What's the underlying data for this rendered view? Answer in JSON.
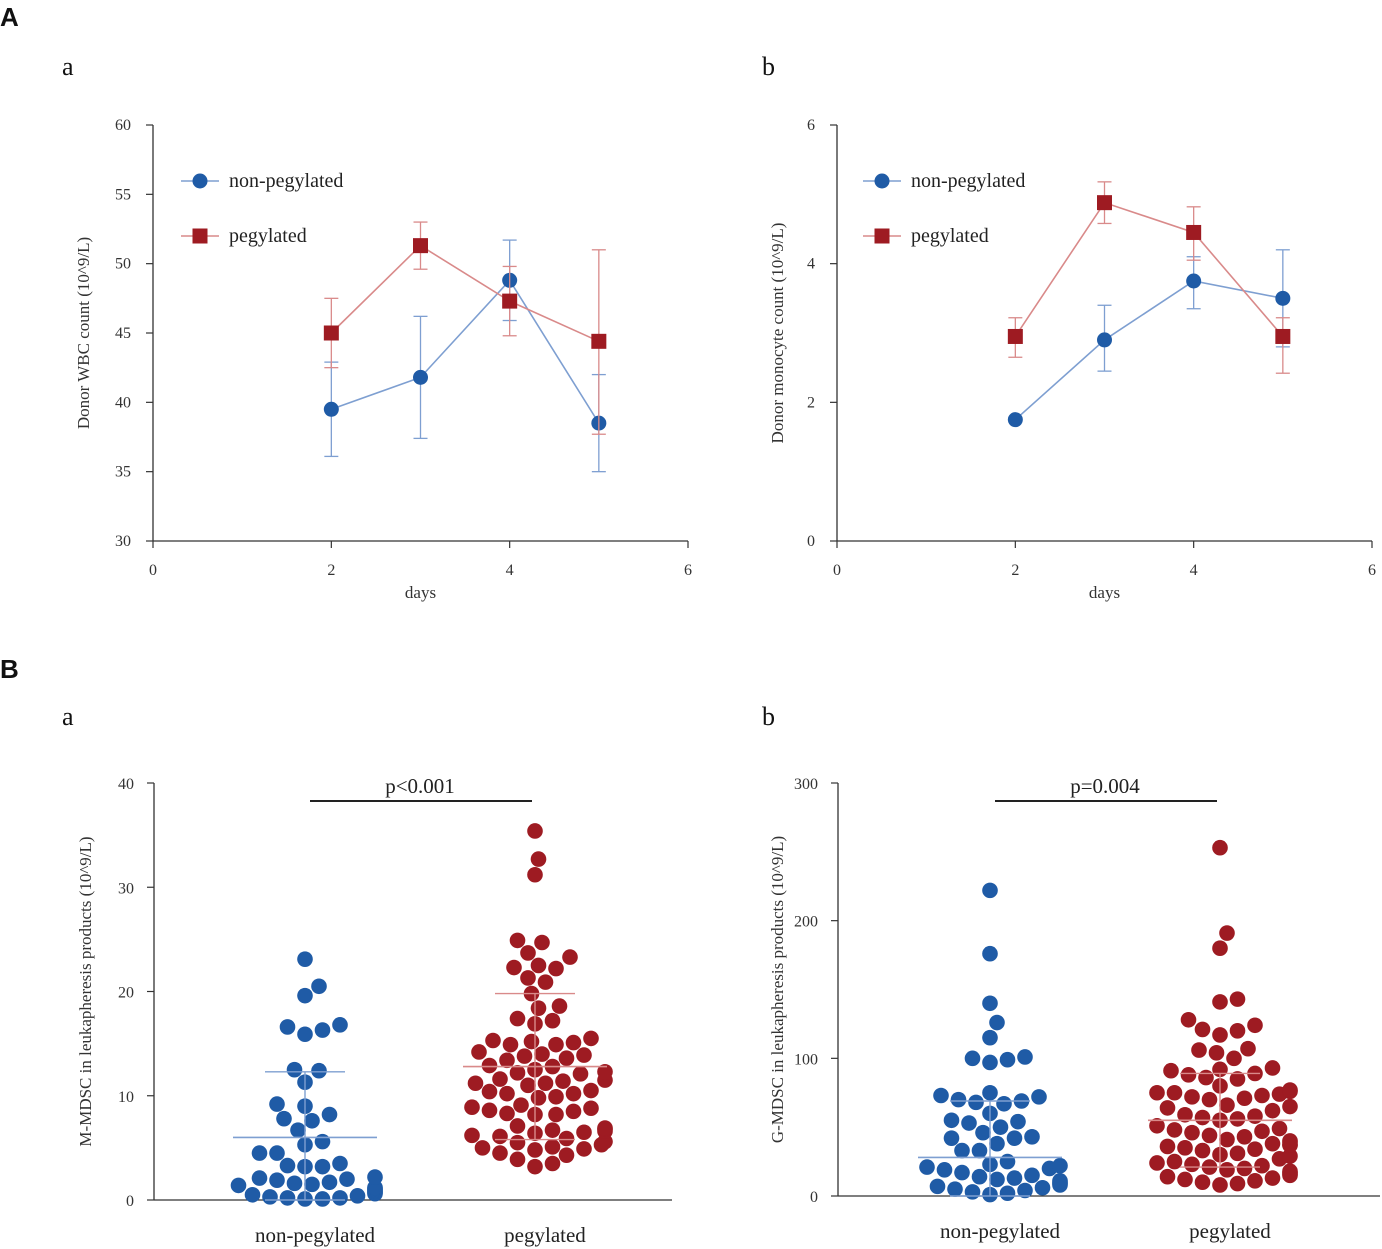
{
  "figure": {
    "panel_labels": [
      "A",
      "B"
    ],
    "subpanel_labels": [
      "a",
      "b",
      "a",
      "b"
    ]
  },
  "colors": {
    "blue": "#1f5ba6",
    "red": "#9e1b22",
    "blue_line": "#7e9fd1",
    "red_line": "#d98a8a",
    "axis": "#333333"
  },
  "chart_data": [
    {
      "id": "Aa",
      "type": "line",
      "title": "",
      "xlabel": "days",
      "ylabel": "Donor WBC count (10^9/L)",
      "xlim": [
        0,
        6
      ],
      "ylim": [
        30,
        60
      ],
      "xticks": [
        0,
        2,
        4,
        6
      ],
      "yticks": [
        30,
        35,
        40,
        45,
        50,
        55,
        60
      ],
      "series": [
        {
          "name": "non-pegylated",
          "x": [
            2,
            3,
            4,
            5
          ],
          "y": [
            39.5,
            41.8,
            48.8,
            38.5
          ],
          "err_low": [
            36.1,
            37.4,
            45.9,
            35.0
          ],
          "err_high": [
            42.9,
            46.2,
            51.7,
            42.0
          ],
          "marker": "circle"
        },
        {
          "name": "pegylated",
          "x": [
            2,
            3,
            4,
            5
          ],
          "y": [
            45.0,
            51.3,
            47.3,
            44.4
          ],
          "err_low": [
            42.5,
            49.6,
            44.8,
            37.7
          ],
          "err_high": [
            47.5,
            53.0,
            49.8,
            51.0
          ],
          "marker": "square"
        }
      ],
      "legend": "top-left"
    },
    {
      "id": "Ab",
      "type": "line",
      "title": "",
      "xlabel": "days",
      "ylabel": "Donor monocyte count (10^9/L)",
      "xlim": [
        0,
        6
      ],
      "ylim": [
        0,
        6
      ],
      "xticks": [
        0,
        2,
        4,
        6
      ],
      "yticks": [
        0,
        2,
        4,
        6
      ],
      "series": [
        {
          "name": "non-pegylated",
          "x": [
            2,
            3,
            4,
            5
          ],
          "y": [
            1.75,
            2.9,
            3.75,
            3.5
          ],
          "err_low": [
            1.75,
            2.45,
            3.35,
            2.8
          ],
          "err_high": [
            1.75,
            3.4,
            4.1,
            4.2
          ],
          "marker": "circle"
        },
        {
          "name": "pegylated",
          "x": [
            2,
            3,
            4,
            5
          ],
          "y": [
            2.95,
            4.88,
            4.45,
            2.95
          ],
          "err_low": [
            2.65,
            4.58,
            4.05,
            2.42
          ],
          "err_high": [
            3.22,
            5.18,
            4.82,
            3.22
          ],
          "marker": "square"
        }
      ],
      "legend": "top-left"
    },
    {
      "id": "Ba",
      "type": "scatter",
      "title": "",
      "xlabel": "",
      "ylabel": "M-MDSC in leukapheresis products (10^9/L)",
      "ylim": [
        0,
        40
      ],
      "yticks": [
        0,
        10,
        20,
        30,
        40
      ],
      "categories": [
        "non-pegylated",
        "pegylated"
      ],
      "annotation": "p<0.001",
      "groups": [
        {
          "name": "non-pegylated",
          "mean": 6.0,
          "sd_low": 0.0,
          "sd_high": 12.3,
          "values": [
            23.1,
            20.5,
            19.6,
            16.8,
            16.6,
            16.3,
            15.9,
            12.5,
            12.4,
            11.3,
            9.2,
            9.0,
            8.2,
            7.8,
            7.6,
            6.7,
            5.6,
            5.3,
            4.5,
            4.5,
            3.5,
            3.3,
            3.2,
            3.2,
            2.2,
            2.1,
            2.0,
            1.9,
            1.7,
            1.6,
            1.5,
            1.4,
            1.2,
            1.1,
            1.0,
            0.9,
            0.8,
            0.7,
            0.6,
            0.5,
            0.4,
            0.3,
            0.2,
            0.2,
            0.1,
            0.1
          ]
        },
        {
          "name": "pegylated",
          "mean": 12.8,
          "sd_low": 5.8,
          "sd_high": 19.8,
          "values": [
            35.4,
            32.7,
            31.2,
            24.9,
            24.7,
            23.7,
            23.3,
            22.5,
            22.3,
            22.2,
            21.3,
            20.9,
            19.8,
            18.6,
            18.4,
            17.4,
            17.2,
            16.9,
            15.5,
            15.3,
            15.2,
            15.1,
            14.9,
            14.9,
            14.2,
            14.0,
            13.9,
            13.8,
            13.6,
            13.4,
            12.9,
            12.8,
            12.5,
            12.3,
            12.2,
            12.1,
            11.6,
            11.5,
            11.4,
            11.2,
            11.2,
            11.0,
            10.5,
            10.4,
            10.2,
            10.2,
            9.9,
            9.8,
            9.1,
            8.9,
            8.8,
            8.6,
            8.5,
            8.3,
            8.2,
            8.2,
            7.1,
            6.9,
            6.8,
            6.7,
            6.6,
            6.5,
            6.4,
            6.2,
            6.1,
            5.9,
            5.6,
            5.5,
            5.3,
            5.1,
            5.0,
            4.9,
            4.8,
            4.5,
            4.3,
            3.9,
            3.5,
            3.2
          ]
        }
      ]
    },
    {
      "id": "Bb",
      "type": "scatter",
      "title": "",
      "xlabel": "",
      "ylabel": "G-MDSC in leukapheresis products (10^9/L)",
      "ylim": [
        0,
        300
      ],
      "yticks": [
        0,
        100,
        200,
        300
      ],
      "categories": [
        "non-pegylated",
        "pegylated"
      ],
      "annotation": "p=0.004",
      "groups": [
        {
          "name": "non-pegylated",
          "mean": 28.0,
          "sd_low": 0.0,
          "sd_high": 69.0,
          "values": [
            222,
            176,
            140,
            126,
            115,
            101,
            100,
            99,
            97,
            75,
            73,
            72,
            70,
            69,
            68,
            67,
            60,
            55,
            54,
            53,
            50,
            46,
            43,
            42,
            42,
            38,
            33,
            33,
            25,
            23,
            22,
            21,
            20,
            19,
            17,
            15,
            14,
            13,
            12,
            11,
            10,
            9,
            8,
            7,
            6,
            5,
            4,
            3,
            2,
            1
          ]
        },
        {
          "name": "pegylated",
          "mean": 55.0,
          "sd_low": 21.0,
          "sd_high": 89.0,
          "values": [
            253,
            191,
            180,
            143,
            141,
            128,
            124,
            121,
            120,
            117,
            107,
            106,
            104,
            100,
            93,
            92,
            91,
            89,
            88,
            86,
            85,
            80,
            77,
            76,
            75,
            75,
            74,
            73,
            72,
            71,
            70,
            66,
            65,
            64,
            62,
            59,
            58,
            57,
            56,
            55,
            51,
            49,
            48,
            47,
            46,
            44,
            43,
            41,
            40,
            39,
            38,
            37,
            37,
            36,
            35,
            34,
            33,
            31,
            30,
            29,
            27,
            25,
            24,
            23,
            22,
            21,
            20,
            19,
            18,
            17,
            16,
            15,
            14,
            13,
            12,
            11,
            10,
            9,
            8
          ]
        }
      ]
    }
  ]
}
